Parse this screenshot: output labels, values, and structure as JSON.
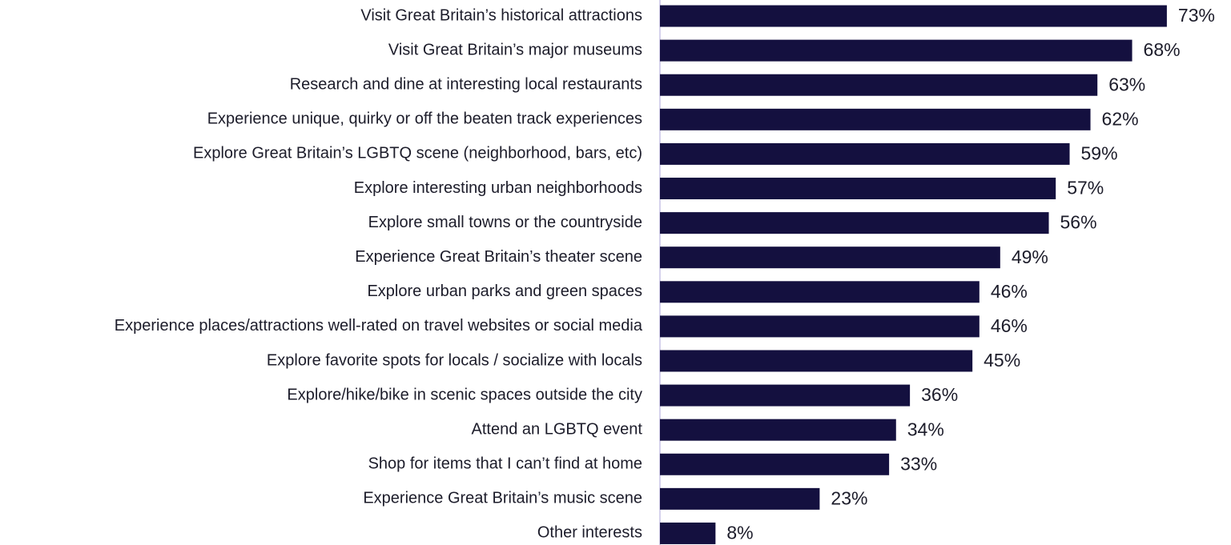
{
  "chart_data": {
    "type": "bar",
    "orientation": "horizontal",
    "categories": [
      "Visit Great Britain’s historical attractions",
      "Visit Great Britain’s major museums",
      "Research and dine at interesting local restaurants",
      "Experience unique, quirky or off the beaten track experiences",
      "Explore Great Britain’s LGBTQ scene (neighborhood, bars, etc)",
      "Explore interesting urban neighborhoods",
      "Explore small towns or the countryside",
      "Experience Great Britain’s theater scene",
      "Explore urban parks and green spaces",
      "Experience places/attractions well-rated on travel websites or social media",
      "Explore favorite spots for locals / socialize with locals",
      "Explore/hike/bike in scenic spaces outside the city",
      "Attend an LGBTQ event",
      "Shop for items that I can’t find at home",
      "Experience Great Britain’s music scene",
      "Other interests"
    ],
    "values": [
      73,
      68,
      63,
      62,
      59,
      57,
      56,
      49,
      46,
      46,
      45,
      36,
      34,
      33,
      23,
      8
    ],
    "value_labels": [
      "73%",
      "68%",
      "63%",
      "62%",
      "59%",
      "57%",
      "56%",
      "49%",
      "46%",
      "46%",
      "45%",
      "36%",
      "34%",
      "33%",
      "23%",
      "8%"
    ],
    "color": "#14103f",
    "xlim": [
      0,
      80
    ]
  }
}
